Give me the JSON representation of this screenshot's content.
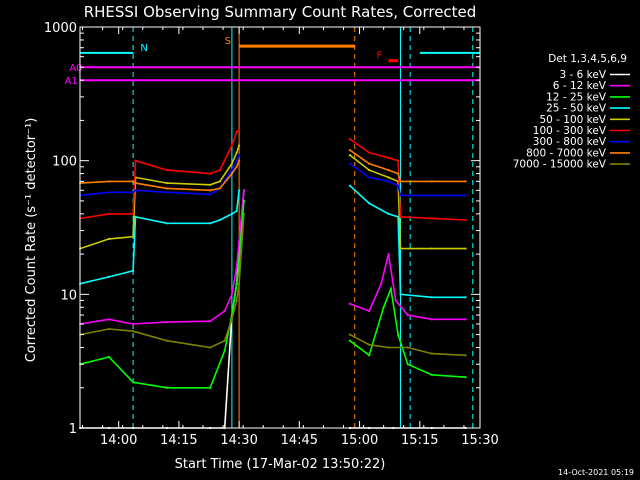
{
  "chart_data": {
    "type": "line",
    "title": "RHESSI Observing Summary Count Rates, Corrected",
    "xlabel": "Start Time (17-Mar-02 13:50:22)",
    "ylabel": "Corrected Count Rate (s⁻¹ detector⁻¹)",
    "footer_date": "14-Oct-2021 05:19",
    "xlim": [
      13.8394,
      15.5
    ],
    "x_ticks": [
      {
        "label": "14:00",
        "t": 14.0
      },
      {
        "label": "14:15",
        "t": 14.25
      },
      {
        "label": "14:30",
        "t": 14.5
      },
      {
        "label": "14:45",
        "t": 14.75
      },
      {
        "label": "15:00",
        "t": 15.0
      },
      {
        "label": "15:15",
        "t": 15.25
      },
      {
        "label": "15:30",
        "t": 15.5
      }
    ],
    "y_scale": "log",
    "ylim": [
      1,
      1000
    ],
    "y_ticks": [
      {
        "label": "1",
        "v": 1
      },
      {
        "label": "10",
        "v": 10
      },
      {
        "label": "100",
        "v": 100
      },
      {
        "label": "1000",
        "v": 1000
      }
    ],
    "legend_title": "Det 1,3,4,5,6,9",
    "series": [
      {
        "name": "3 - 6 keV",
        "color": "#ffffff",
        "points": [
          [
            13.84,
            1.0
          ],
          [
            13.96,
            1.0
          ],
          [
            14.06,
            1.0
          ],
          [
            14.2,
            1.0
          ],
          [
            14.38,
            1.0
          ],
          [
            14.44,
            1.0
          ],
          [
            14.47,
            7
          ],
          [
            14.49,
            12
          ],
          [
            14.5,
            22
          ],
          [
            14.52,
            60
          ]
        ],
        "points2": [
          [
            14.96,
            1.0
          ],
          [
            15.04,
            1.0
          ],
          [
            15.14,
            1.0
          ],
          [
            15.3,
            1.0
          ],
          [
            15.44,
            1.0
          ]
        ]
      },
      {
        "name": "6 - 12 keV",
        "color": "#ff00ff",
        "points": [
          [
            13.84,
            6.0
          ],
          [
            13.96,
            6.5
          ],
          [
            14.06,
            6.0
          ],
          [
            14.2,
            6.2
          ],
          [
            14.38,
            6.3
          ],
          [
            14.44,
            7.5
          ],
          [
            14.47,
            10
          ],
          [
            14.49,
            16
          ],
          [
            14.5,
            25
          ],
          [
            14.52,
            60
          ]
        ],
        "points2": [
          [
            14.96,
            8.5
          ],
          [
            15.04,
            7.5
          ],
          [
            15.09,
            12
          ],
          [
            15.12,
            20
          ],
          [
            15.15,
            9
          ],
          [
            15.2,
            7
          ],
          [
            15.3,
            6.5
          ],
          [
            15.44,
            6.5
          ]
        ]
      },
      {
        "name": "12 - 25 keV",
        "color": "#00ff00",
        "points": [
          [
            13.84,
            3.0
          ],
          [
            13.96,
            3.4
          ],
          [
            14.06,
            2.2
          ],
          [
            14.2,
            2.0
          ],
          [
            14.38,
            2.0
          ],
          [
            14.44,
            3.8
          ],
          [
            14.47,
            7
          ],
          [
            14.49,
            12
          ],
          [
            14.5,
            18
          ],
          [
            14.52,
            50
          ]
        ],
        "points2": [
          [
            14.96,
            4.5
          ],
          [
            15.04,
            3.5
          ],
          [
            15.1,
            8
          ],
          [
            15.13,
            11
          ],
          [
            15.16,
            5
          ],
          [
            15.2,
            3.0
          ],
          [
            15.3,
            2.5
          ],
          [
            15.44,
            2.4
          ]
        ]
      },
      {
        "name": "25 - 50 keV",
        "color": "#00ffff",
        "points": [
          [
            13.84,
            12.0
          ],
          [
            13.96,
            13.5
          ],
          [
            14.06,
            15.0
          ],
          [
            14.07,
            38.0
          ],
          [
            14.2,
            34
          ],
          [
            14.38,
            34
          ],
          [
            14.42,
            36
          ],
          [
            14.47,
            40
          ],
          [
            14.49,
            42
          ],
          [
            14.5,
            60
          ]
        ],
        "points2": [
          [
            14.96,
            65
          ],
          [
            15.04,
            48
          ],
          [
            15.12,
            40
          ],
          [
            15.16,
            38
          ],
          [
            15.17,
            10
          ],
          [
            15.3,
            9.5
          ],
          [
            15.44,
            9.5
          ]
        ]
      },
      {
        "name": "50 - 100 keV",
        "color": "#cccc00",
        "points": [
          [
            13.84,
            22.0
          ],
          [
            13.96,
            26.0
          ],
          [
            14.06,
            27.0
          ],
          [
            14.07,
            75.0
          ],
          [
            14.2,
            68
          ],
          [
            14.38,
            66
          ],
          [
            14.42,
            70
          ],
          [
            14.47,
            95
          ],
          [
            14.49,
            115
          ],
          [
            14.5,
            130
          ]
        ],
        "points2": [
          [
            14.96,
            110
          ],
          [
            15.04,
            85
          ],
          [
            15.12,
            75
          ],
          [
            15.16,
            70
          ],
          [
            15.17,
            22
          ],
          [
            15.3,
            22
          ],
          [
            15.44,
            22
          ]
        ]
      },
      {
        "name": "100 - 300 keV",
        "color": "#ff0000",
        "points": [
          [
            13.84,
            37.0
          ],
          [
            13.96,
            40.0
          ],
          [
            14.06,
            40.0
          ],
          [
            14.07,
            100.0
          ],
          [
            14.2,
            85
          ],
          [
            14.38,
            80
          ],
          [
            14.42,
            85
          ],
          [
            14.47,
            130
          ],
          [
            14.49,
            165
          ],
          [
            14.5,
            170
          ]
        ],
        "points2": [
          [
            14.96,
            145
          ],
          [
            15.04,
            115
          ],
          [
            15.12,
            105
          ],
          [
            15.16,
            100
          ],
          [
            15.17,
            38
          ],
          [
            15.3,
            37
          ],
          [
            15.44,
            36
          ]
        ]
      },
      {
        "name": "300 - 800 keV",
        "color": "#0000ff",
        "points": [
          [
            13.84,
            55.0
          ],
          [
            13.96,
            58.0
          ],
          [
            14.06,
            58.0
          ],
          [
            14.07,
            60.0
          ],
          [
            14.2,
            58
          ],
          [
            14.38,
            56
          ],
          [
            14.42,
            62
          ],
          [
            14.47,
            85
          ],
          [
            14.49,
            100
          ],
          [
            14.5,
            110
          ]
        ],
        "points2": [
          [
            14.96,
            95
          ],
          [
            15.04,
            75
          ],
          [
            15.12,
            70
          ],
          [
            15.16,
            65
          ],
          [
            15.17,
            55
          ],
          [
            15.3,
            55
          ],
          [
            15.44,
            55
          ]
        ]
      },
      {
        "name": "800 - 7000 keV",
        "color": "#ff8000",
        "points": [
          [
            13.84,
            68.0
          ],
          [
            13.96,
            70.0
          ],
          [
            14.06,
            70.0
          ],
          [
            14.07,
            68.0
          ],
          [
            14.2,
            62
          ],
          [
            14.38,
            60
          ],
          [
            14.42,
            62
          ],
          [
            14.47,
            80
          ],
          [
            14.49,
            90
          ],
          [
            14.5,
            100
          ]
        ],
        "points2": [
          [
            14.96,
            120
          ],
          [
            15.04,
            95
          ],
          [
            15.12,
            85
          ],
          [
            15.16,
            80
          ],
          [
            15.17,
            70
          ],
          [
            15.3,
            70
          ],
          [
            15.44,
            70
          ]
        ]
      },
      {
        "name": "7000 - 15000 keV",
        "color": "#808000",
        "points": [
          [
            13.84,
            5.0
          ],
          [
            13.96,
            5.5
          ],
          [
            14.06,
            5.3
          ],
          [
            14.2,
            4.5
          ],
          [
            14.38,
            4.0
          ],
          [
            14.44,
            4.5
          ],
          [
            14.47,
            6.5
          ],
          [
            14.49,
            9
          ],
          [
            14.5,
            12
          ],
          [
            14.52,
            40
          ]
        ],
        "points2": [
          [
            14.96,
            5.0
          ],
          [
            15.04,
            4.2
          ],
          [
            15.12,
            4.0
          ],
          [
            15.2,
            4.0
          ],
          [
            15.3,
            3.6
          ],
          [
            15.44,
            3.5
          ]
        ]
      }
    ],
    "flags": [
      {
        "label": "A0",
        "color": "#ff00ff",
        "value": 500,
        "x_start": 13.8394,
        "x_end": 15.5,
        "label_at": 13.85
      },
      {
        "label": "A1",
        "color": "#ff00ff",
        "value": 400,
        "x_start": 13.8394,
        "x_end": 15.5,
        "label_at": 13.83
      },
      {
        "label": "N",
        "color": "#00ffff",
        "value": 640,
        "x_start": 13.8394,
        "x_end": 14.06,
        "label_at": 14.09
      },
      {
        "label": "N",
        "color": "#00ffff",
        "value": 640,
        "x_start": 15.25,
        "x_end": 15.5,
        "label_at": null
      },
      {
        "label": "S",
        "color": "#ff8000",
        "value": 720,
        "x_start": 14.5,
        "x_end": 14.98,
        "label_at": 14.44
      },
      {
        "label": "F",
        "color": "#ff0000",
        "value": 560,
        "x_start": 15.12,
        "x_end": 15.16,
        "label_at": 15.07
      }
    ],
    "vlines": [
      {
        "t": 14.06,
        "color": "#00ffff",
        "style": "dashed"
      },
      {
        "t": 14.47,
        "color": "#00ffff",
        "style": "solid"
      },
      {
        "t": 14.5,
        "color": "#ff8000",
        "style": "solid"
      },
      {
        "t": 14.98,
        "color": "#ff8000",
        "style": "dashed"
      },
      {
        "t": 15.17,
        "color": "#00ffff",
        "style": "solid"
      },
      {
        "t": 15.21,
        "color": "#00ffff",
        "style": "dashed"
      },
      {
        "t": 15.47,
        "color": "#00ffff",
        "style": "dashed"
      }
    ],
    "grid": false,
    "legend_position": "right"
  }
}
